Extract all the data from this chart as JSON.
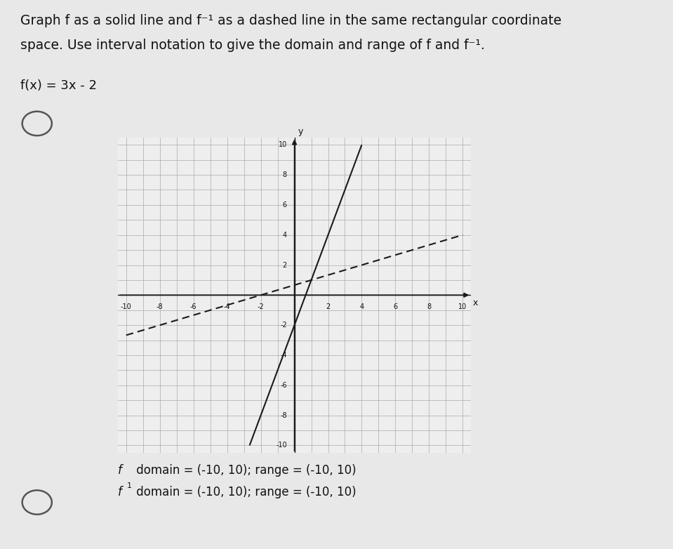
{
  "title_line1": "Graph f as a solid line and f⁻¹ as a dashed line in the same rectangular coordinate",
  "title_line2": "space. Use interval notation to give the domain and range of f and f⁻¹.",
  "fx_label": "f(x) = 3x - 2",
  "f_slope": 3,
  "f_intercept": -2,
  "finv_slope": 0.3333333333333333,
  "finv_intercept": 0.6666666666666666,
  "xmin": -10,
  "xmax": 10,
  "ymin": -10,
  "ymax": 10,
  "f_color": "#1a1a1a",
  "finv_color": "#1a1a1a",
  "grid_color": "#aaaaaa",
  "axis_color": "#1a1a1a",
  "background_color": "#eeeeee",
  "outer_background": "#e8e8e8",
  "f_linewidth": 1.5,
  "finv_linewidth": 1.5,
  "caption_f": "f domain = (-10, 10); range = (-10, 10)",
  "caption_finv_part1": "f",
  "caption_finv_super": "1",
  "caption_finv_part2": " domain = (-10, 10); range = (-10, 10)"
}
